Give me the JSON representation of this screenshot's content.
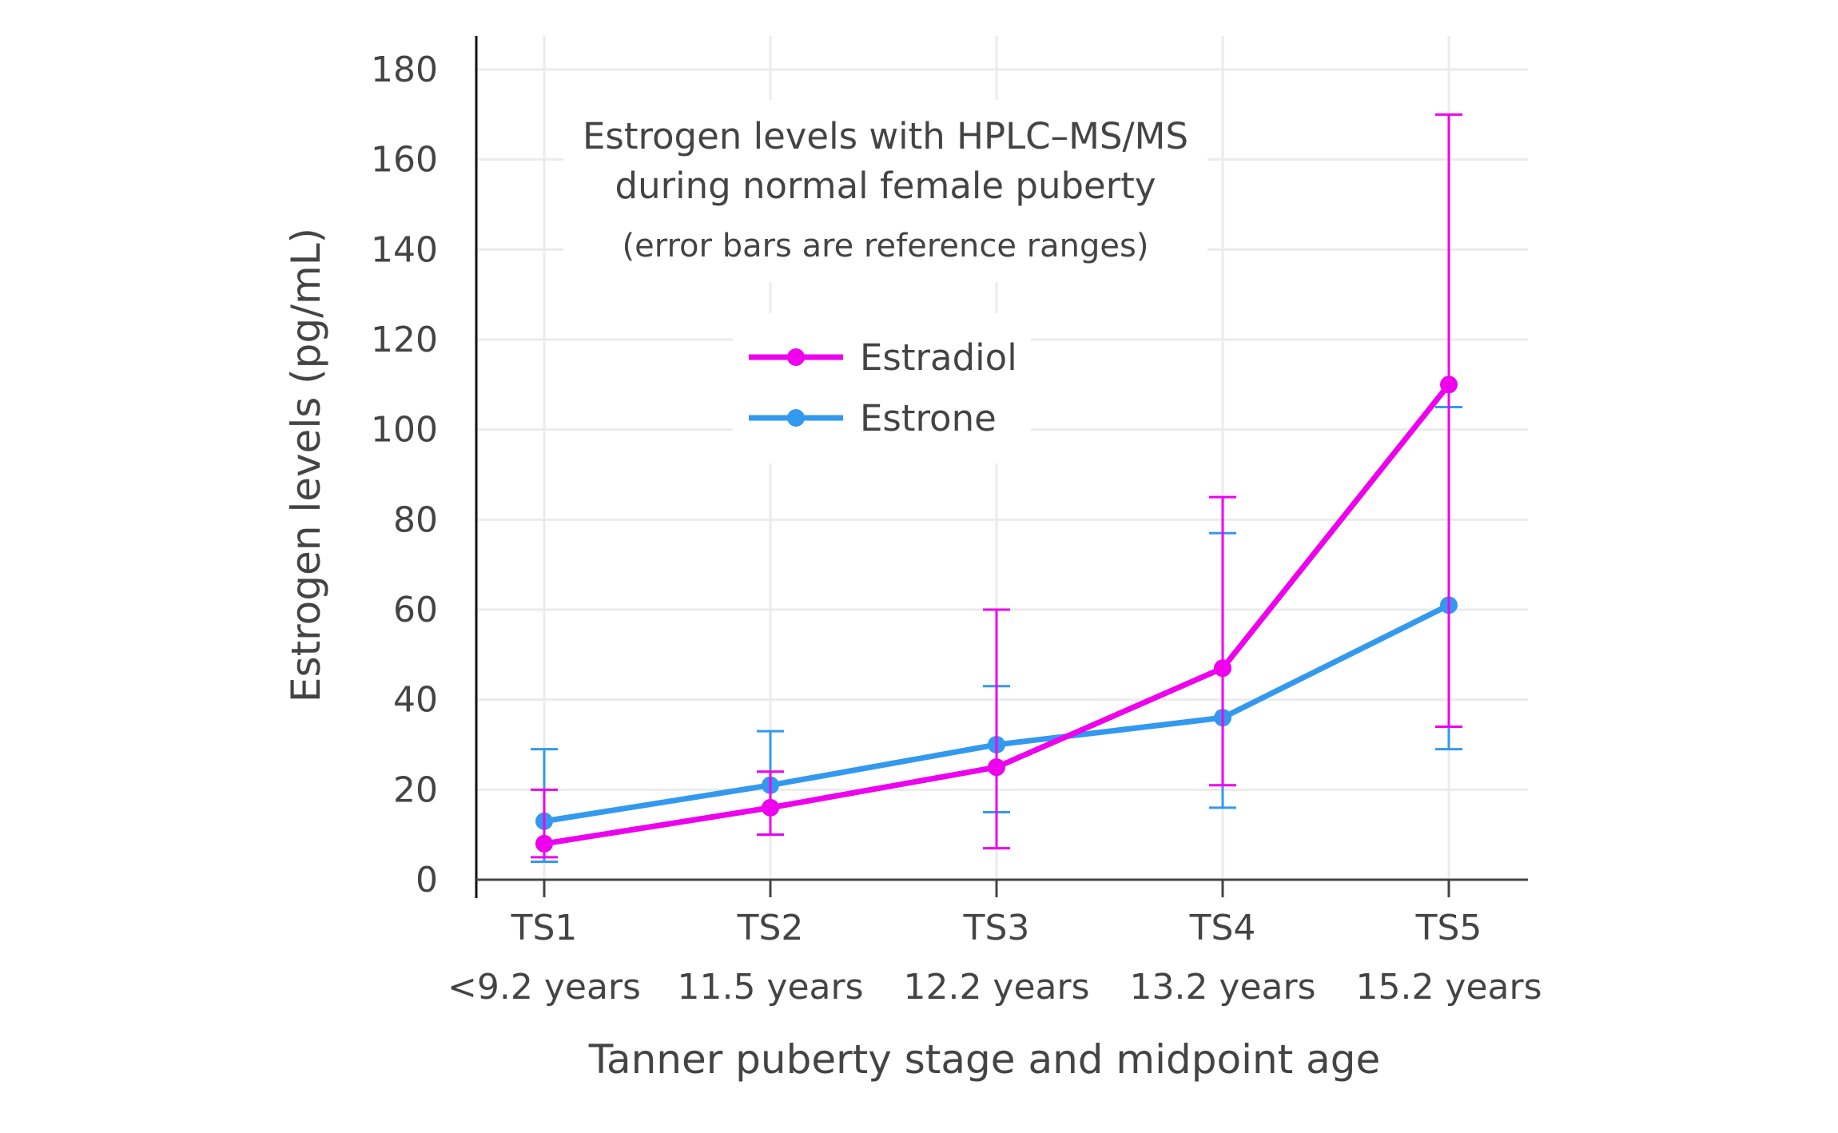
{
  "chart_data": {
    "type": "line",
    "title_lines": [
      "Estrogen levels with HPLC–MS/MS",
      "during normal female puberty",
      "(error bars are reference ranges)"
    ],
    "xlabel": "Tanner puberty stage and midpoint age",
    "ylabel": "Estrogen levels (pg/mL)",
    "categories": [
      "TS1",
      "TS2",
      "TS3",
      "TS4",
      "TS5"
    ],
    "category_sublabels": [
      "<9.2 years",
      "11.5 years",
      "12.2 years",
      "13.2 years",
      "15.2 years"
    ],
    "ylim": [
      0,
      180
    ],
    "yticks": [
      0,
      20,
      40,
      60,
      80,
      100,
      120,
      140,
      160,
      180
    ],
    "grid": true,
    "legend_position": "center",
    "series": [
      {
        "name": "Estradiol",
        "color": "#ee00ee",
        "values": [
          8,
          16,
          25,
          47,
          110
        ],
        "error_low": [
          5,
          10,
          7,
          21,
          34
        ],
        "error_high": [
          20,
          24,
          60,
          85,
          170
        ]
      },
      {
        "name": "Estrone",
        "color": "#3399ee",
        "values": [
          13,
          21,
          30,
          36,
          61
        ],
        "error_low": [
          4,
          10,
          15,
          16,
          29
        ],
        "error_high": [
          29,
          33,
          43,
          77,
          105
        ]
      }
    ]
  }
}
